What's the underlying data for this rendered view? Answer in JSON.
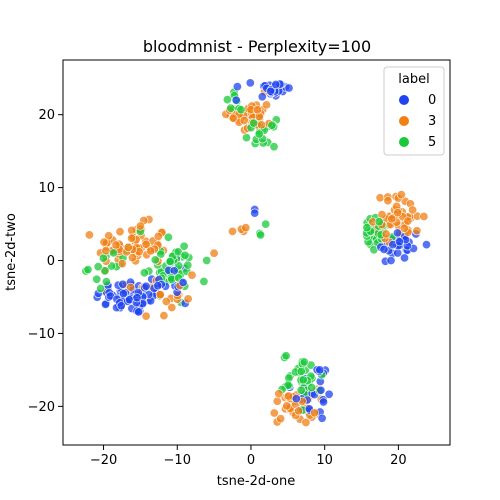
{
  "chart_data": {
    "type": "scatter",
    "title": "bloodmnist - Perplexity=100",
    "xlabel": "tsne-2d-one",
    "ylabel": "tsne-2d-two",
    "xlim": [
      -25.5,
      27
    ],
    "ylim": [
      -25.3,
      27.5
    ],
    "xticks": [
      -20,
      -10,
      0,
      10,
      20
    ],
    "yticks": [
      -20,
      -10,
      0,
      10,
      20
    ],
    "grid": false,
    "legend": {
      "title": "label",
      "placement": "top-right",
      "entries": [
        {
          "label": "0",
          "color": "#1f44f0"
        },
        {
          "label": "3",
          "color": "#f07f14"
        },
        {
          "label": "5",
          "color": "#1ac93a"
        }
      ]
    },
    "series": [
      {
        "name": "0",
        "color": "#1f44f0",
        "clusters": [
          {
            "cx": -16,
            "cy": -5,
            "sx": 3.4,
            "sy": 1.6,
            "n": 70
          },
          {
            "cx": -11,
            "cy": -2,
            "sx": 1.8,
            "sy": 1.8,
            "n": 15
          },
          {
            "cx": 3,
            "cy": 23.5,
            "sx": 1.6,
            "sy": 1.0,
            "n": 25
          },
          {
            "cx": 20,
            "cy": 2,
            "sx": 2.2,
            "sy": 1.6,
            "n": 30
          },
          {
            "cx": 8.5,
            "cy": -18,
            "sx": 2.0,
            "sy": 2.8,
            "n": 25
          }
        ],
        "points": [
          [
            0.5,
            7
          ],
          [
            0.5,
            6.5
          ],
          [
            -2,
            22
          ],
          [
            19,
            0
          ]
        ]
      },
      {
        "name": "3",
        "color": "#f07f14",
        "clusters": [
          {
            "cx": -16,
            "cy": 2,
            "sx": 3.2,
            "sy": 2.0,
            "n": 70
          },
          {
            "cx": -13,
            "cy": -5,
            "sx": 2.5,
            "sy": 1.8,
            "n": 20
          },
          {
            "cx": 0,
            "cy": 20,
            "sx": 1.8,
            "sy": 1.8,
            "n": 40
          },
          {
            "cx": 20,
            "cy": 6,
            "sx": 2.2,
            "sy": 2.0,
            "n": 45
          },
          {
            "cx": 6,
            "cy": -20,
            "sx": 2.0,
            "sy": 1.6,
            "n": 40
          }
        ],
        "points": [
          [
            -2.5,
            4
          ],
          [
            -1.3,
            4.3
          ],
          [
            -1,
            4
          ],
          [
            -0.7,
            4.5
          ],
          [
            -5,
            1
          ],
          [
            -8,
            -2
          ]
        ]
      },
      {
        "name": "5",
        "color": "#1ac93a",
        "clusters": [
          {
            "cx": -11,
            "cy": -1,
            "sx": 2.2,
            "sy": 2.2,
            "n": 45
          },
          {
            "cx": -19,
            "cy": -1,
            "sx": 2.0,
            "sy": 1.5,
            "n": 15
          },
          {
            "cx": 1.5,
            "cy": 17.5,
            "sx": 1.2,
            "sy": 1.2,
            "n": 20
          },
          {
            "cx": -2,
            "cy": 21.5,
            "sx": 1.0,
            "sy": 1.0,
            "n": 8
          },
          {
            "cx": 17,
            "cy": 3.5,
            "sx": 1.6,
            "sy": 1.6,
            "n": 30
          },
          {
            "cx": 7,
            "cy": -16,
            "sx": 1.8,
            "sy": 2.2,
            "n": 35
          }
        ],
        "points": [
          [
            1.2,
            3.7
          ],
          [
            1.3,
            3.5
          ],
          [
            2,
            5
          ],
          [
            -6,
            0
          ],
          [
            -15,
            4
          ]
        ]
      }
    ]
  }
}
